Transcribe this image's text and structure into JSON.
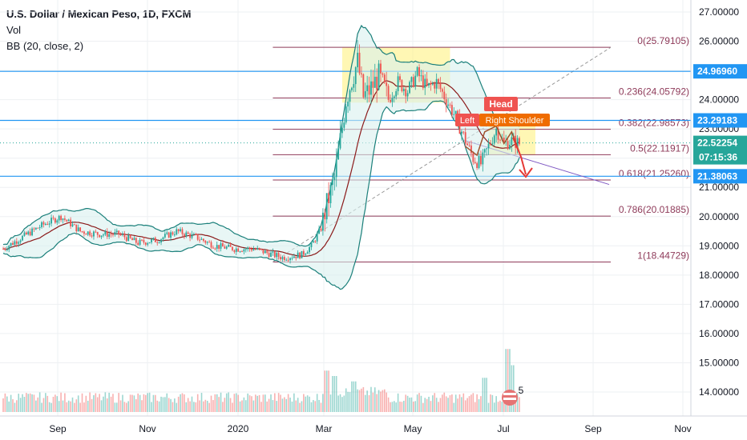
{
  "legend": {
    "title": "U.S. Dollar / Mexican Peso, 1D, FXCM",
    "vol": "Vol",
    "bb": "BB (20, close, 2)"
  },
  "colors": {
    "up": "#26a69a",
    "down": "#ef5350",
    "bb_band": "#1a7f7a",
    "bb_basis": "#8b1a1a",
    "bb_fill": "#d9f0ee",
    "fib": "#8e3a59",
    "hline": "#2196f3",
    "highlight": "#fff176",
    "pattern_line": "#a0522d",
    "arrow": "#e53935"
  },
  "chart_data": {
    "type": "candlestick",
    "x_labels": [
      "Sep",
      "Nov",
      "2020",
      "Mar",
      "May",
      "Jul",
      "Sep",
      "Nov"
    ],
    "y_ticks": [
      "27.00000",
      "26.00000",
      "25.00000",
      "24.00000",
      "23.00000",
      "22.00000",
      "21.00000",
      "20.00000",
      "19.00000",
      "18.00000",
      "17.00000",
      "16.00000",
      "15.00000",
      "14.00000"
    ],
    "ylim": [
      13.4,
      27.3
    ],
    "fibonacci": [
      {
        "label": "0(25.79105)",
        "value": 25.79105
      },
      {
        "label": "0.236(24.05792)",
        "value": 24.05792
      },
      {
        "label": "0.382(22.98573)",
        "value": 22.98573
      },
      {
        "label": "0.5(22.11917)",
        "value": 22.11917
      },
      {
        "label": "0.618(21.25260)",
        "value": 21.2526
      },
      {
        "label": "0.786(20.01885)",
        "value": 20.01885
      },
      {
        "label": "1(18.44729)",
        "value": 18.44729
      }
    ],
    "horizontal_levels": [
      {
        "label": "24.96960",
        "value": 24.9696
      },
      {
        "label": "23.29183",
        "value": 23.29183
      },
      {
        "label": "21.38063",
        "value": 21.38063
      }
    ],
    "last_price": {
      "label": "22.52254",
      "value": 22.52254,
      "countdown": "07:15:36"
    },
    "patterns": {
      "head": "Head",
      "left_shoulder": "Left",
      "right_shoulder": "Right Shoulder"
    },
    "keyframes": [
      [
        0,
        18.9
      ],
      [
        10,
        19.3
      ],
      [
        20,
        19.7
      ],
      [
        30,
        20.0
      ],
      [
        40,
        19.5
      ],
      [
        50,
        19.4
      ],
      [
        60,
        19.4
      ],
      [
        70,
        19.1
      ],
      [
        80,
        19.2
      ],
      [
        90,
        19.5
      ],
      [
        100,
        19.3
      ],
      [
        110,
        19.0
      ],
      [
        120,
        18.9
      ],
      [
        130,
        18.9
      ],
      [
        140,
        18.7
      ],
      [
        145,
        18.6
      ],
      [
        155,
        18.7
      ],
      [
        160,
        19.0
      ],
      [
        165,
        19.6
      ],
      [
        168,
        20.4
      ],
      [
        172,
        21.3
      ],
      [
        175,
        22.6
      ],
      [
        178,
        24.0
      ],
      [
        181,
        24.7
      ],
      [
        184,
        25.3
      ],
      [
        187,
        24.1
      ],
      [
        190,
        24.3
      ],
      [
        195,
        24.8
      ],
      [
        200,
        24.0
      ],
      [
        205,
        24.6
      ],
      [
        210,
        24.3
      ],
      [
        215,
        24.9
      ],
      [
        220,
        24.4
      ],
      [
        225,
        24.6
      ],
      [
        230,
        24.0
      ],
      [
        235,
        23.4
      ],
      [
        240,
        22.6
      ],
      [
        244,
        22.0
      ],
      [
        248,
        21.8
      ],
      [
        252,
        22.4
      ],
      [
        256,
        23.0
      ],
      [
        260,
        22.5
      ],
      [
        264,
        22.6
      ],
      [
        268,
        22.5
      ]
    ],
    "volume_spikes": [
      [
        168,
        1.0
      ],
      [
        172,
        0.85
      ],
      [
        182,
        0.7
      ],
      [
        250,
        0.95
      ],
      [
        262,
        1.75
      ],
      [
        264,
        1.3
      ]
    ],
    "bars": 268
  },
  "scroll_badge": "5"
}
